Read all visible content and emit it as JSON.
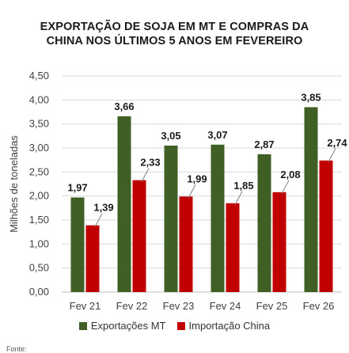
{
  "title_line1": "EXPORTAÇÃO DE SOJA EM MT E COMPRAS DA",
  "title_line2": "CHINA NOS ÚLTIMOS 5 ANOS EM FEVEREIRO",
  "footnote": "Fonte:",
  "colors": {
    "exports": "#3f5f24",
    "imports": "#c00000",
    "grid": "#d9d9d9",
    "axis": "#bfbfbf"
  },
  "chart_data": {
    "type": "bar",
    "title": "EXPORTAÇÃO DE SOJA EM MT E COMPRAS DA CHINA NOS ÚLTIMOS 5 ANOS EM FEVEREIRO",
    "xlabel": "",
    "ylabel": "Milhões de toneladas",
    "ylim": [
      0,
      4.5
    ],
    "yticks": [
      "0,00",
      "0,50",
      "1,00",
      "1,50",
      "2,00",
      "2,50",
      "3,00",
      "3,50",
      "4,00",
      "4,50"
    ],
    "categories": [
      "Fev 21",
      "Fev 22",
      "Fev 23",
      "Fev 24",
      "Fev 25",
      "Fev 26"
    ],
    "series": [
      {
        "name": "Exportações MT",
        "values": [
          1.97,
          3.66,
          3.05,
          3.07,
          2.87,
          3.85
        ],
        "labels": [
          "1,97",
          "3,66",
          "3,05",
          "3,07",
          "2,87",
          "3,85"
        ]
      },
      {
        "name": "Importação China",
        "values": [
          1.39,
          2.33,
          1.99,
          1.85,
          2.08,
          2.74
        ],
        "labels": [
          "1,39",
          "2,33",
          "1,99",
          "1,85",
          "2,08",
          "2,74"
        ]
      }
    ],
    "grid": true,
    "legend": "bottom"
  }
}
